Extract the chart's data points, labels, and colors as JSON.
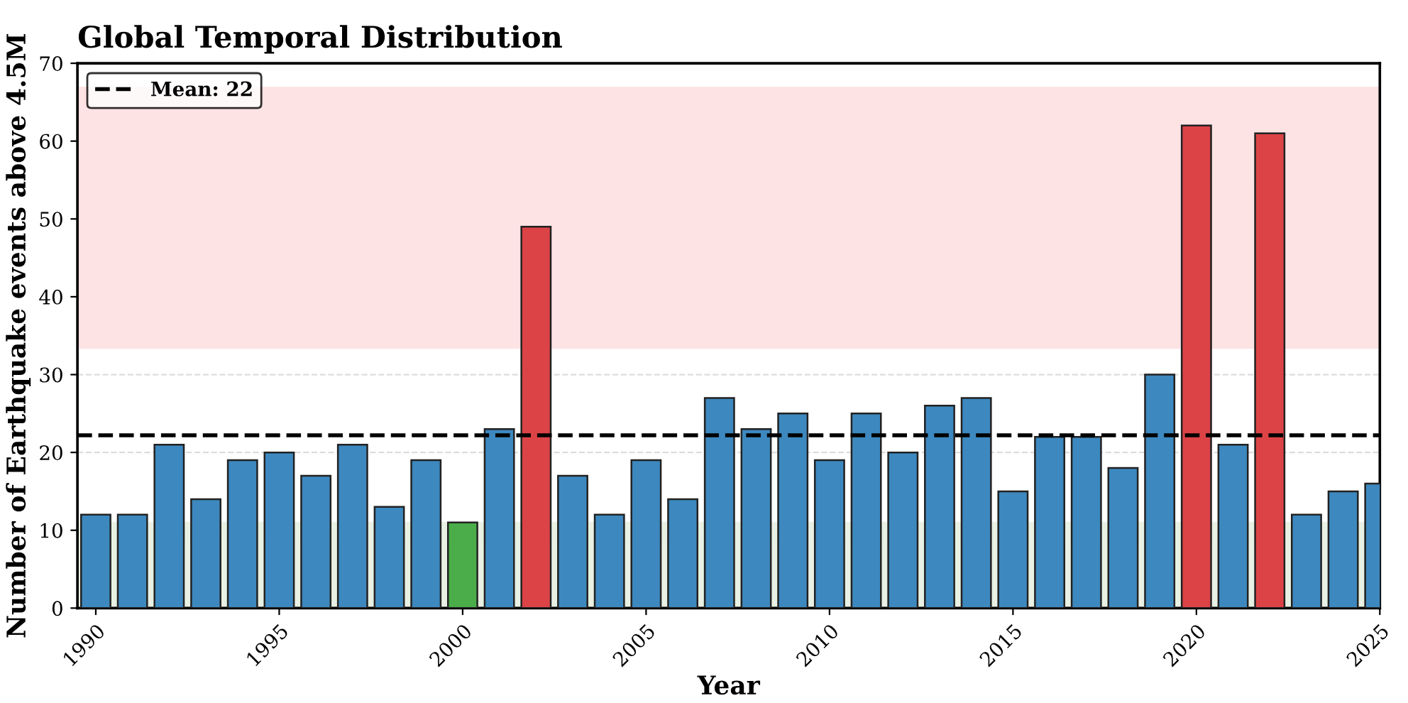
{
  "chart_data": {
    "type": "bar",
    "title": "Global Temporal Distribution",
    "xlabel": "Year",
    "ylabel": "Number of Earthquake events above 4.5M",
    "x": [
      1990,
      1991,
      1992,
      1993,
      1994,
      1995,
      1996,
      1997,
      1998,
      1999,
      2000,
      2001,
      2002,
      2003,
      2004,
      2005,
      2006,
      2007,
      2008,
      2009,
      2010,
      2011,
      2012,
      2013,
      2014,
      2015,
      2016,
      2017,
      2018,
      2019,
      2020,
      2021,
      2022,
      2023,
      2024,
      2025
    ],
    "values": [
      12,
      12,
      21,
      14,
      19,
      20,
      17,
      21,
      13,
      19,
      11,
      23,
      49,
      17,
      12,
      19,
      14,
      27,
      23,
      25,
      19,
      25,
      20,
      26,
      27,
      15,
      22,
      22,
      18,
      30,
      62,
      21,
      61,
      12,
      15,
      16
    ],
    "colors": [
      "#3d88bf",
      "#3d88bf",
      "#3d88bf",
      "#3d88bf",
      "#3d88bf",
      "#3d88bf",
      "#3d88bf",
      "#3d88bf",
      "#3d88bf",
      "#3d88bf",
      "#4aad4a",
      "#3d88bf",
      "#dc4346",
      "#3d88bf",
      "#3d88bf",
      "#3d88bf",
      "#3d88bf",
      "#3d88bf",
      "#3d88bf",
      "#3d88bf",
      "#3d88bf",
      "#3d88bf",
      "#3d88bf",
      "#3d88bf",
      "#3d88bf",
      "#3d88bf",
      "#3d88bf",
      "#3d88bf",
      "#3d88bf",
      "#3d88bf",
      "#dc4346",
      "#3d88bf",
      "#dc4346",
      "#3d88bf",
      "#3d88bf",
      "#3d88bf"
    ],
    "xlim": [
      1989.5,
      2025
    ],
    "xticks": [
      1990,
      1995,
      2000,
      2005,
      2010,
      2015,
      2020,
      2025
    ],
    "ylim": [
      0,
      70
    ],
    "yticks": [
      0,
      10,
      20,
      30,
      40,
      50,
      60,
      70
    ],
    "ref_lines": [
      {
        "axis": "y",
        "value": 22.2,
        "label": "Mean: 22",
        "color": "#000000",
        "line_style": "dashed"
      }
    ],
    "bands": [
      {
        "axis": "y",
        "from": 33.3,
        "to": 67,
        "color": "#fde3e4"
      },
      {
        "axis": "y",
        "from": 0,
        "to": 11.1,
        "color": "#e8f1e3"
      }
    ],
    "grid": "y",
    "legend": "top left"
  }
}
